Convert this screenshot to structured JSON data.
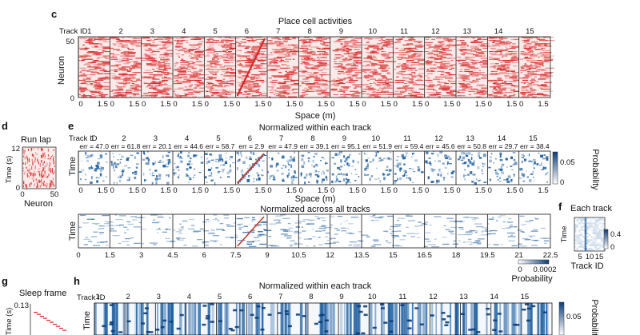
{
  "panels": {
    "c": {
      "label": "c",
      "title": "Place cell activities",
      "track_id_label": "Track ID",
      "tracks": [
        "1",
        "2",
        "3",
        "4",
        "5",
        "6",
        "7",
        "8",
        "9",
        "10",
        "11",
        "12",
        "13",
        "14",
        "15"
      ],
      "ylabel": "Neuron",
      "yticks": [
        "50",
        "0"
      ],
      "xticks": [
        "0",
        "1.5"
      ],
      "xlabel": "Space (m)",
      "color": "#d62828"
    },
    "d": {
      "label": "d",
      "title": "Run lap",
      "ylabel": "Time (s)",
      "yticks": [
        "12",
        "0"
      ],
      "xticks": [
        "0",
        "50"
      ],
      "xlabel": "Neuron"
    },
    "e": {
      "label": "e",
      "title_top": "Normalized within each track",
      "track_id_label": "Track ID",
      "tracks": [
        "1",
        "2",
        "3",
        "4",
        "5",
        "6",
        "7",
        "8",
        "9",
        "10",
        "11",
        "12",
        "13",
        "14",
        "15"
      ],
      "errors": [
        "err = 47.0",
        "err = 61.8",
        "err = 20.1",
        "err = 44.6",
        "err = 58.7",
        "err = 2.9",
        "err = 47.9",
        "err = 39.1",
        "err = 95.1",
        "err = 51.9",
        "err = 59.4",
        "err = 45.6",
        "err = 50.8",
        "err = 29.7",
        "err = 38.4"
      ],
      "ylabel": "Time",
      "xticks": [
        "0",
        "1.5"
      ],
      "xlabel": "Space (m)",
      "colorbar_label": "Probability",
      "colorbar_ticks": [
        "0.05",
        "0"
      ],
      "title_bottom": "Normalized across all tracks",
      "bottom_xticks": [
        "0",
        "1.5",
        "3",
        "4.5",
        "6",
        "7.5",
        "9",
        "10.5",
        "12",
        "13.5",
        "15",
        "16.5",
        "18",
        "19.5",
        "21",
        "22.5"
      ],
      "bottom_colorbar_ticks": [
        "0",
        "0.0002"
      ],
      "bottom_colorbar_label": "Probability",
      "color": "#1f5fa0"
    },
    "f": {
      "label": "f",
      "title": "Each track",
      "ylabel": "Time",
      "xticks": [
        "5",
        "10",
        "15"
      ],
      "xlabel": "Track ID",
      "colorbar_ticks": [
        "0.4",
        "0"
      ]
    },
    "g": {
      "label": "g",
      "title": "Sleep frame",
      "ylabel": "Time (s)",
      "yticks": [
        "0.13"
      ]
    },
    "h": {
      "label": "h",
      "title": "Normalized within each track",
      "track_id_label": "Track ID",
      "tracks": [
        "1",
        "2",
        "3",
        "4",
        "5",
        "6",
        "7",
        "8",
        "9",
        "10",
        "11",
        "12",
        "13",
        "14",
        "15"
      ],
      "ylabel": "Time",
      "colorbar_label": "Probability",
      "colorbar_ticks": [
        "0.05"
      ]
    }
  }
}
